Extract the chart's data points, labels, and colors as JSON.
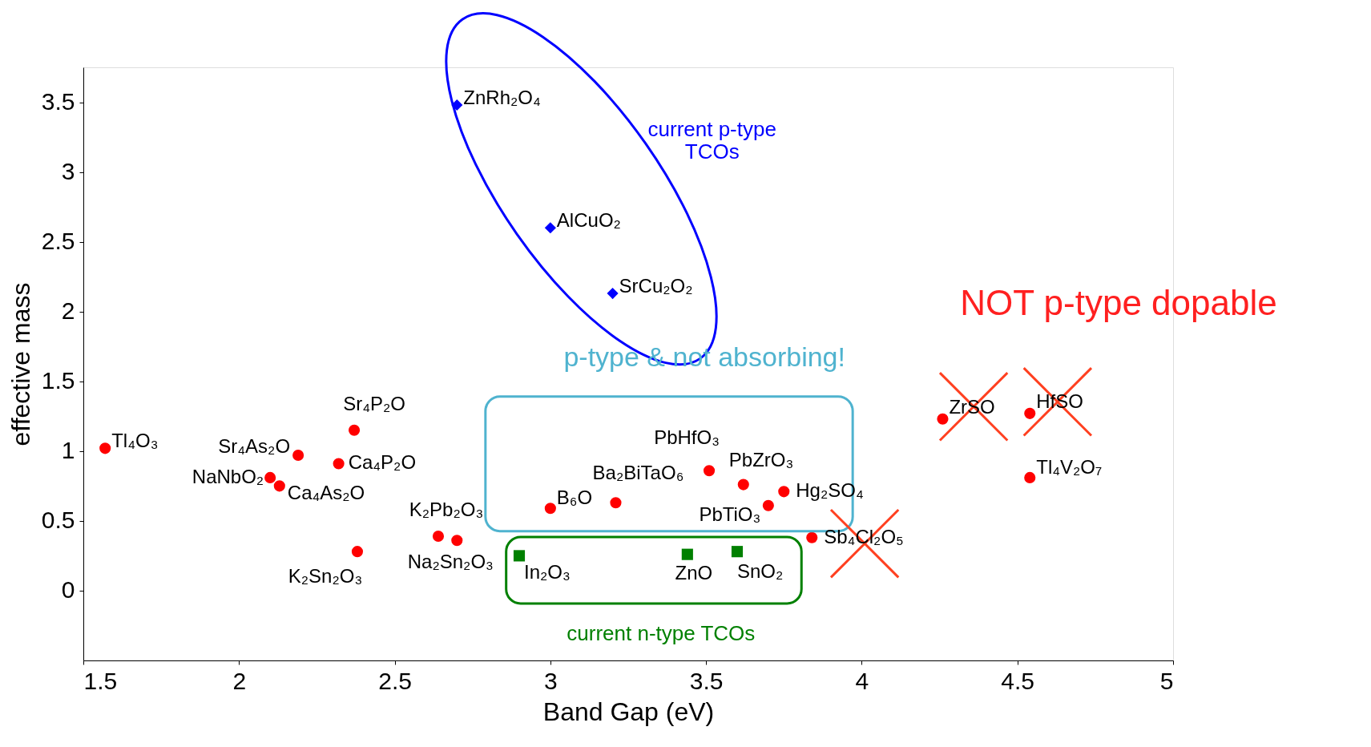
{
  "chart_data": {
    "type": "scatter",
    "xlabel": "Band Gap (eV)",
    "ylabel": "effective mass",
    "xlim": [
      1.5,
      5
    ],
    "xticks": [
      1.5,
      2,
      2.5,
      3,
      3.5,
      4,
      4.5,
      5
    ],
    "ylim": [
      -0.5,
      3.75
    ],
    "yticks": [
      0,
      0.5,
      1,
      1.5,
      2,
      2.5,
      3,
      3.5
    ],
    "grid": false,
    "series": [
      {
        "color": "#ff0000",
        "marker": "circle",
        "x": [
          1.57,
          2.1,
          2.13,
          2.19,
          2.32,
          2.37,
          2.38,
          2.64,
          2.7,
          3.0,
          3.21,
          3.51,
          3.62,
          3.7,
          3.75,
          3.84,
          4.26,
          4.54,
          4.54
        ],
        "values": [
          1.02,
          0.81,
          0.75,
          0.97,
          0.91,
          1.15,
          0.28,
          0.39,
          0.36,
          0.59,
          0.63,
          0.86,
          0.76,
          0.61,
          0.71,
          0.38,
          1.23,
          1.27,
          0.81
        ]
      },
      {
        "color": "#0000ff",
        "marker": "diamond",
        "x": [
          2.7,
          3.0,
          3.2
        ],
        "values": [
          3.48,
          2.6,
          2.13
        ]
      },
      {
        "color": "#008000",
        "marker": "square",
        "x": [
          2.9,
          3.44,
          3.6
        ],
        "values": [
          0.25,
          0.26,
          0.28
        ]
      }
    ],
    "annotations": [
      {
        "text": "Tl₄O₃",
        "x": 1.57,
        "y": 1.02
      },
      {
        "text": "NaNbO₂",
        "x": 2.1,
        "y": 0.81
      },
      {
        "text": "Ca₄As₂O",
        "x": 2.13,
        "y": 0.75
      },
      {
        "text": "Sr₄As₂O",
        "x": 2.19,
        "y": 0.97
      },
      {
        "text": "Ca₄P₂O",
        "x": 2.32,
        "y": 0.91
      },
      {
        "text": "Sr₄P₂O",
        "x": 2.37,
        "y": 1.15
      },
      {
        "text": "K₂Sn₂O₃",
        "x": 2.38,
        "y": 0.28
      },
      {
        "text": "K₂Pb₂O₃",
        "x": 2.64,
        "y": 0.39
      },
      {
        "text": "Na₂Sn₂O₃",
        "x": 2.7,
        "y": 0.36
      },
      {
        "text": "B₆O",
        "x": 3.0,
        "y": 0.59
      },
      {
        "text": "Ba₂BiTaO₆",
        "x": 3.21,
        "y": 0.63
      },
      {
        "text": "PbHfO₃",
        "x": 3.51,
        "y": 0.86
      },
      {
        "text": "PbZrO₃",
        "x": 3.62,
        "y": 0.76
      },
      {
        "text": "PbTiO₃",
        "x": 3.7,
        "y": 0.61
      },
      {
        "text": "Hg₂SO₄",
        "x": 3.75,
        "y": 0.71
      },
      {
        "text": "Sb₄Cl₂O₅",
        "x": 3.84,
        "y": 0.38
      },
      {
        "text": "ZrSO",
        "x": 4.26,
        "y": 1.23
      },
      {
        "text": "HfSO",
        "x": 4.54,
        "y": 1.27
      },
      {
        "text": "Tl₄V₂O₇",
        "x": 4.54,
        "y": 0.81
      },
      {
        "text": "ZnRh₂O₄",
        "x": 2.7,
        "y": 3.48
      },
      {
        "text": "AlCuO₂",
        "x": 3.0,
        "y": 2.6
      },
      {
        "text": "SrCu₂O₂",
        "x": 3.2,
        "y": 2.13
      },
      {
        "text": "In₂O₃",
        "x": 2.9,
        "y": 0.25
      },
      {
        "text": "ZnO",
        "x": 3.44,
        "y": 0.26
      },
      {
        "text": "SnO₂",
        "x": 3.6,
        "y": 0.28
      },
      "current p-type\nTCOs",
      "NOT p-type dopable",
      "p-type & not absorbing!",
      "current n-type TCOs"
    ]
  }
}
